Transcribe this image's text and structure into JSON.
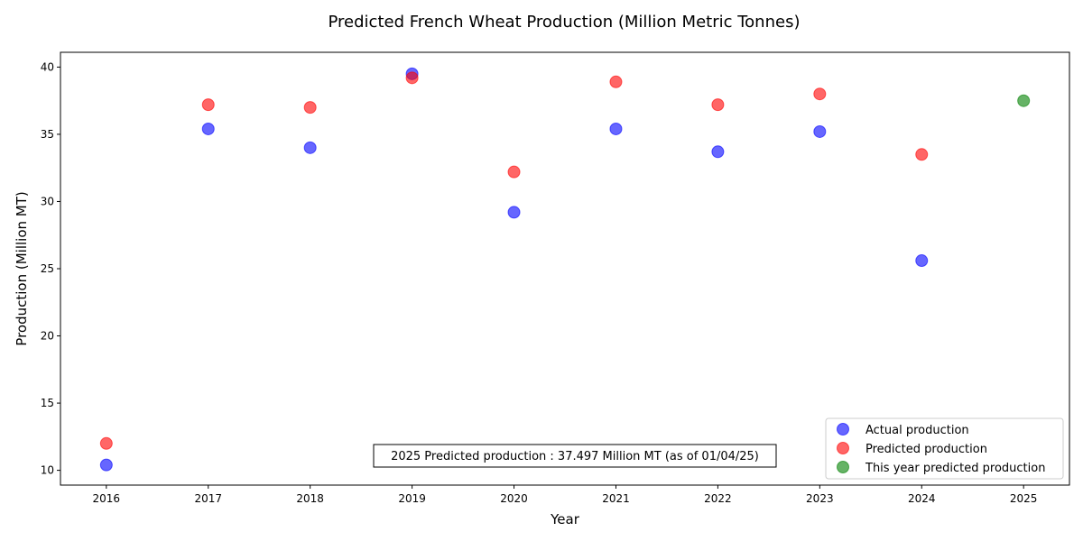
{
  "chart_data": {
    "type": "scatter",
    "title": "Predicted French Wheat Production (Million Metric Tonnes)",
    "xlabel": "Year",
    "ylabel": "Production (Million MT)",
    "xlim": [
      2015.55,
      2025.45
    ],
    "ylim": [
      8.9,
      41.1
    ],
    "xticks": [
      2016,
      2017,
      2018,
      2019,
      2020,
      2021,
      2022,
      2023,
      2024,
      2025
    ],
    "yticks": [
      10,
      15,
      20,
      25,
      30,
      35,
      40
    ],
    "grid": false,
    "legend_position": "lower-right",
    "series": [
      {
        "name": "Actual production",
        "color": "#0000ff",
        "points": [
          {
            "x": 2016,
            "y": 10.4
          },
          {
            "x": 2017,
            "y": 35.4
          },
          {
            "x": 2018,
            "y": 34.0
          },
          {
            "x": 2019,
            "y": 39.5
          },
          {
            "x": 2020,
            "y": 29.2
          },
          {
            "x": 2021,
            "y": 35.4
          },
          {
            "x": 2022,
            "y": 33.7
          },
          {
            "x": 2023,
            "y": 35.2
          },
          {
            "x": 2024,
            "y": 25.6
          }
        ]
      },
      {
        "name": "Predicted production",
        "color": "#ff0000",
        "points": [
          {
            "x": 2016,
            "y": 12.0
          },
          {
            "x": 2017,
            "y": 37.2
          },
          {
            "x": 2018,
            "y": 37.0
          },
          {
            "x": 2019,
            "y": 39.2
          },
          {
            "x": 2020,
            "y": 32.2
          },
          {
            "x": 2021,
            "y": 38.9
          },
          {
            "x": 2022,
            "y": 37.2
          },
          {
            "x": 2023,
            "y": 38.0
          },
          {
            "x": 2024,
            "y": 33.5
          }
        ]
      },
      {
        "name": "This year predicted production",
        "color": "#008000",
        "points": [
          {
            "x": 2025,
            "y": 37.497
          }
        ]
      }
    ],
    "annotation": "2025 Predicted production : 37.497 Million MT (as of 01/04/25)"
  }
}
